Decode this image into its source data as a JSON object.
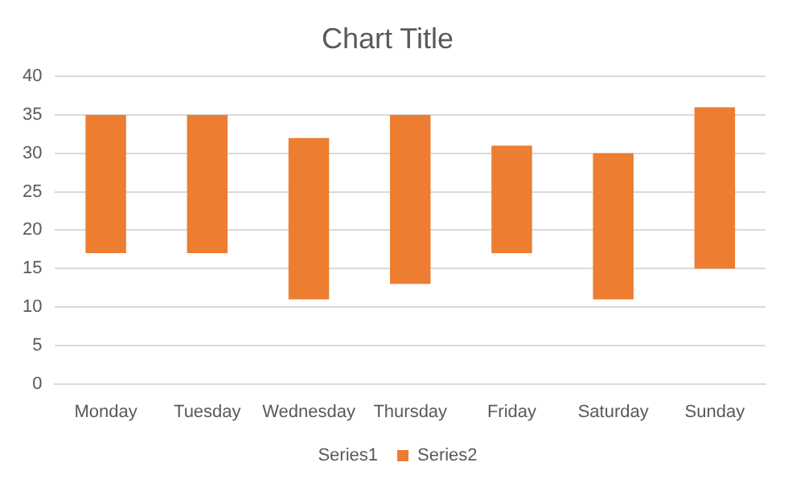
{
  "chart_data": {
    "type": "bar",
    "title": "Chart Title",
    "categories": [
      "Monday",
      "Tuesday",
      "Wednesday",
      "Thursday",
      "Friday",
      "Saturday",
      "Sunday"
    ],
    "series": [
      {
        "name": "Series1",
        "color": null,
        "values": [
          null,
          null,
          null,
          null,
          null,
          null,
          null
        ]
      },
      {
        "name": "Series2",
        "color": "#ed7d31",
        "values": [
          18,
          18,
          21,
          22,
          14,
          19,
          21
        ],
        "base": [
          17,
          17,
          11,
          13,
          17,
          11,
          15
        ]
      }
    ],
    "ylim": [
      0,
      40
    ],
    "yticks": [
      0,
      5,
      10,
      15,
      20,
      25,
      30,
      35,
      40
    ],
    "grid": "y",
    "legend": "bottom"
  }
}
